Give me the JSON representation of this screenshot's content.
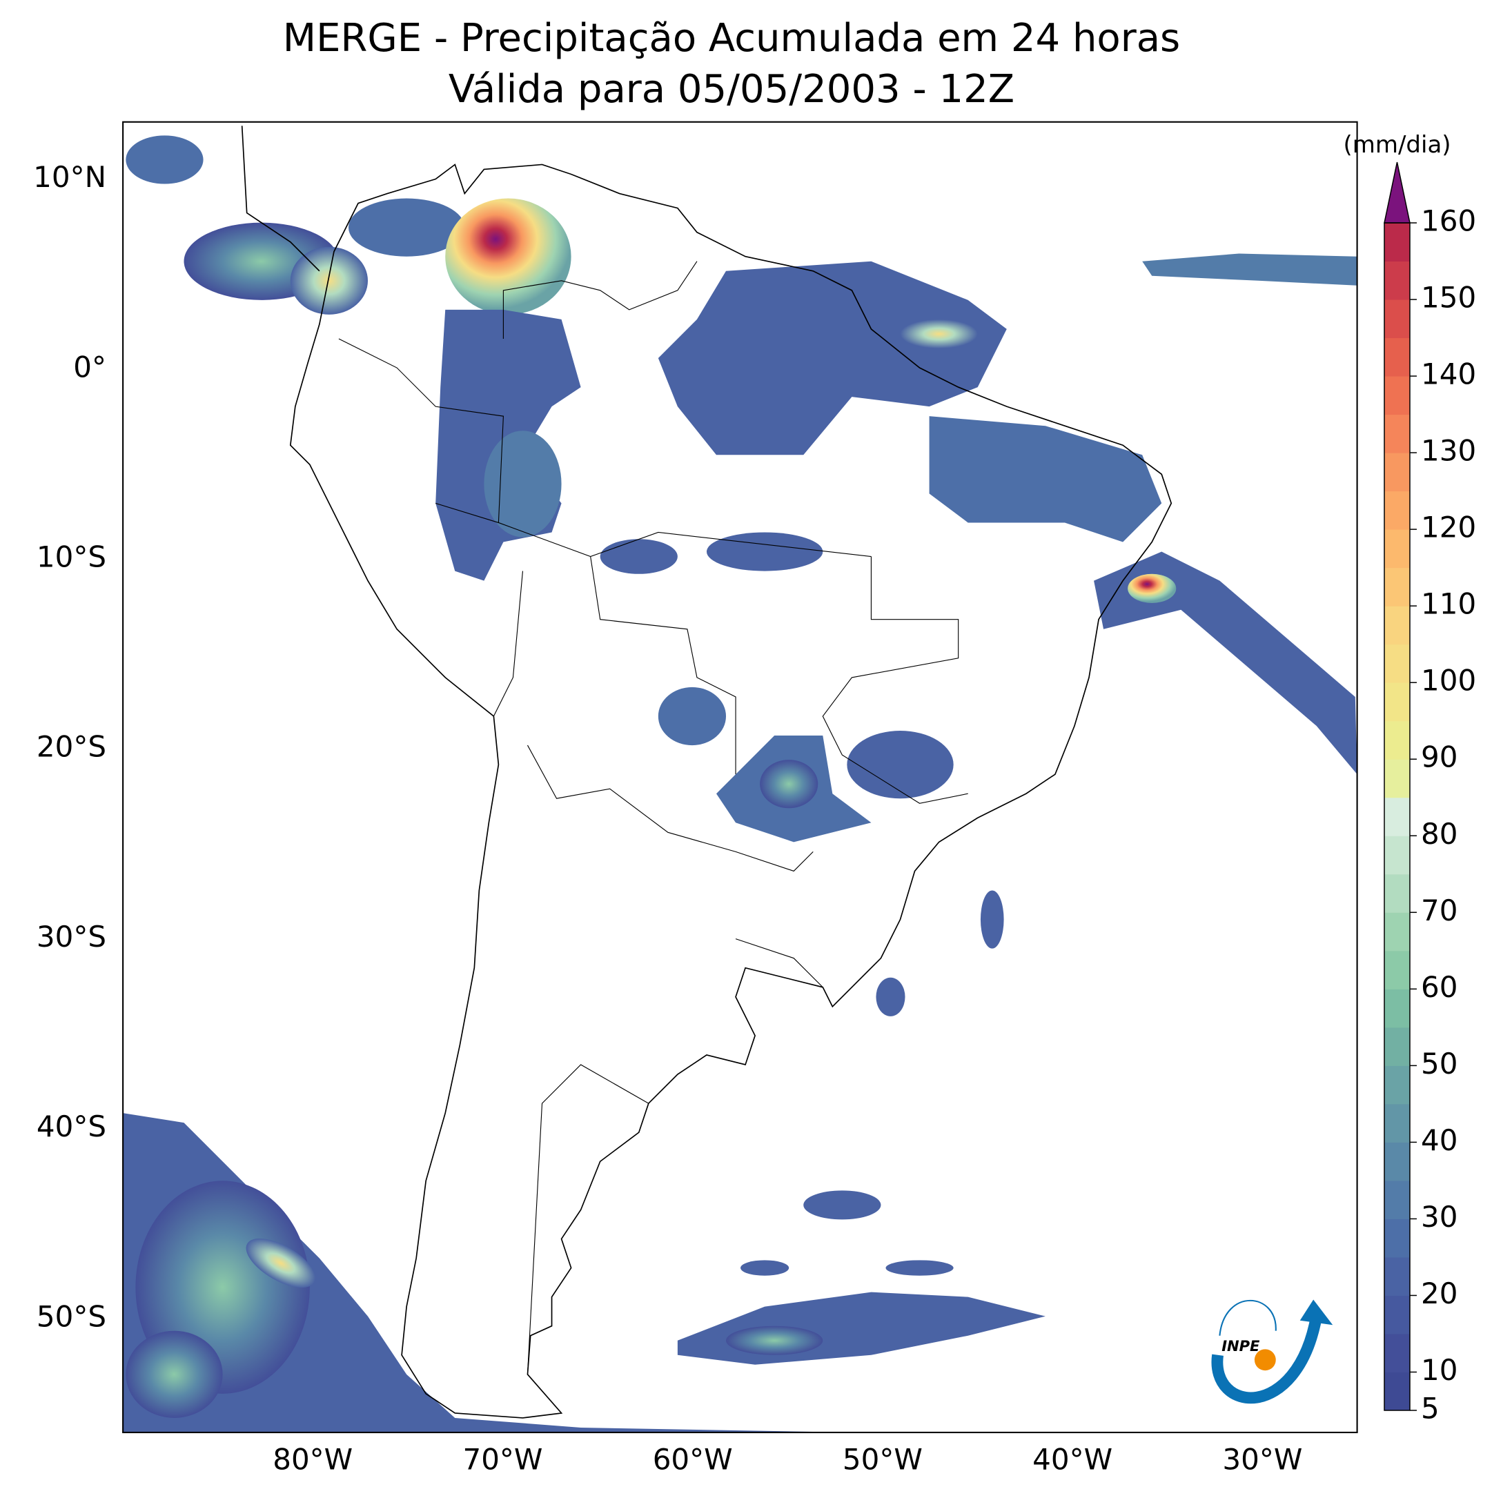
{
  "chart_data": {
    "type": "map",
    "title": "MERGE - Precipitação Acumulada em 24 horas",
    "subtitle": "Válida para 05/05/2003 - 12Z",
    "xlim": [
      -90,
      -25
    ],
    "ylim": [
      -56,
      13
    ],
    "xticks": [
      {
        "value": -80,
        "label": "80°W"
      },
      {
        "value": -70,
        "label": "70°W"
      },
      {
        "value": -60,
        "label": "60°W"
      },
      {
        "value": -50,
        "label": "50°W"
      },
      {
        "value": -40,
        "label": "40°W"
      },
      {
        "value": -30,
        "label": "30°W"
      }
    ],
    "yticks": [
      {
        "value": 10,
        "label": "10°N"
      },
      {
        "value": 0,
        "label": "0°"
      },
      {
        "value": -10,
        "label": "10°S"
      },
      {
        "value": -20,
        "label": "20°S"
      },
      {
        "value": -30,
        "label": "30°S"
      },
      {
        "value": -40,
        "label": "40°S"
      },
      {
        "value": -50,
        "label": "50°S"
      }
    ],
    "colorbar": {
      "label": "(mm/dia)",
      "lim": [
        5,
        160
      ],
      "ticks": [
        5,
        10,
        20,
        30,
        40,
        50,
        60,
        70,
        80,
        90,
        100,
        110,
        120,
        130,
        140,
        150,
        160
      ],
      "colors": [
        "#3e4a94",
        "#434f99",
        "#46599f",
        "#4a63a4",
        "#4d6fa8",
        "#537ca9",
        "#5a89a8",
        "#6296a7",
        "#6aa3a6",
        "#72b0a3",
        "#7cbea4",
        "#8ccaa8",
        "#9ed3b1",
        "#b2dcc0",
        "#c6e5cf",
        "#d8eddf",
        "#e6ef9d",
        "#ecec8f",
        "#f2e588",
        "#f6dd84",
        "#f9d47f",
        "#fbc675",
        "#fcb96d",
        "#fba966",
        "#f89860",
        "#f5855a",
        "#ef7252",
        "#e6604d",
        "#db4e4b",
        "#cc3c4b",
        "#bb2a4a"
      ],
      "extend_color": "#7b137d"
    },
    "logo_text": "INPE"
  }
}
